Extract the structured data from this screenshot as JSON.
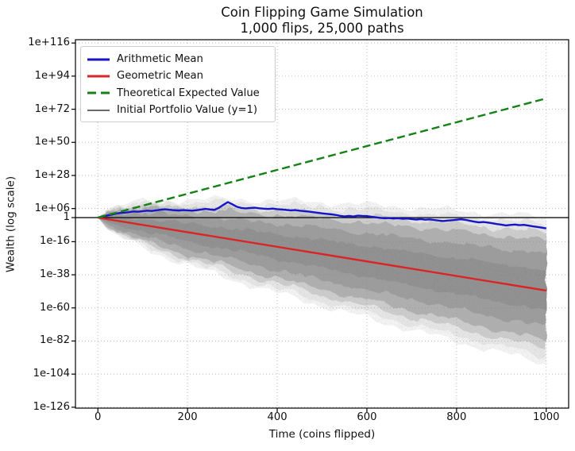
{
  "figure": {
    "title_line1": "Coin Flipping Game Simulation",
    "title_line2": "1,000 flips, 25,000 paths",
    "xlabel": "Time (coins flipped)",
    "ylabel": "Wealth (log scale)"
  },
  "legend": {
    "items": [
      {
        "label": "Arithmetic Mean",
        "color": "#1414c8",
        "sample_width": "3",
        "dash": "none"
      },
      {
        "label": "Geometric Mean",
        "color": "#d92525",
        "sample_width": "3",
        "dash": "none"
      },
      {
        "label": "Theoretical Expected Value",
        "color": "#148214",
        "sample_width": "3",
        "dash": "11 6"
      },
      {
        "label": "Initial Portfolio Value (y=1)",
        "color": "#111111",
        "sample_width": "1.3",
        "dash": "none"
      }
    ]
  },
  "chart_data": {
    "type": "line",
    "title": "Coin Flipping Game Simulation — 1,000 flips, 25,000 paths",
    "xlabel": "Time (coins flipped)",
    "ylabel": "Wealth (log scale)",
    "y_scale": "log10",
    "grid": true,
    "grid_color": "#bbbbbb",
    "xlim": [
      -50,
      1050
    ],
    "ylim_exp": [
      118.2,
      -126.6
    ],
    "x_ticks": [
      0,
      200,
      400,
      600,
      800,
      1000
    ],
    "y_ticks": [
      {
        "label": "1e+116",
        "exp": 116
      },
      {
        "label": "1e+94",
        "exp": 94
      },
      {
        "label": "1e+72",
        "exp": 72
      },
      {
        "label": "1e+50",
        "exp": 50
      },
      {
        "label": "1e+28",
        "exp": 28
      },
      {
        "label": "1e+06",
        "exp": 6
      },
      {
        "label": "1",
        "exp": 0
      },
      {
        "label": "1e-16",
        "exp": -16
      },
      {
        "label": "1e-38",
        "exp": -38
      },
      {
        "label": "1e-60",
        "exp": -60
      },
      {
        "label": "1e-82",
        "exp": -82
      },
      {
        "label": "1e-104",
        "exp": -104
      },
      {
        "label": "1e-126",
        "exp": -126
      }
    ],
    "series": [
      {
        "name": "Arithmetic Mean",
        "color": "#1414c8",
        "width": 2.4,
        "dash": "none",
        "x_start": 0,
        "x_step": 10,
        "y_exp": [
          0,
          0.7,
          1.3,
          1.9,
          2.6,
          3.1,
          3.3,
          3.6,
          4.1,
          3.9,
          4.3,
          4.6,
          4.4,
          4.8,
          5.2,
          5.5,
          5.2,
          4.9,
          4.7,
          5.0,
          4.8,
          4.6,
          4.9,
          5.3,
          5.8,
          5.4,
          5.1,
          6.5,
          8.5,
          10.3,
          8.8,
          7.2,
          6.4,
          6.1,
          6.4,
          6.6,
          6.2,
          5.9,
          5.7,
          6.0,
          5.6,
          5.4,
          5.1,
          4.8,
          5.0,
          4.6,
          4.3,
          4.0,
          3.6,
          3.2,
          2.8,
          2.5,
          2.2,
          1.8,
          1.2,
          0.8,
          1.1,
          0.7,
          1.3,
          1.1,
          1.0,
          0.6,
          0.2,
          -0.2,
          -0.5,
          -0.3,
          -0.7,
          -0.4,
          -0.8,
          -0.6,
          -1.0,
          -1.3,
          -1.0,
          -1.4,
          -1.2,
          -1.6,
          -2.0,
          -2.3,
          -2.0,
          -1.7,
          -1.4,
          -1.1,
          -1.5,
          -2.1,
          -2.7,
          -3.2,
          -2.9,
          -3.3,
          -3.8,
          -4.3,
          -4.7,
          -5.2,
          -4.9,
          -4.6,
          -5.0,
          -4.8,
          -5.3,
          -5.8,
          -6.2,
          -6.7,
          -7.2
        ]
      },
      {
        "name": "Geometric Mean",
        "color": "#d92525",
        "width": 2.4,
        "dash": "none",
        "x": [
          0,
          1000
        ],
        "y_exp": [
          0,
          -48.5
        ]
      },
      {
        "name": "Theoretical Expected Value",
        "color": "#148214",
        "width": 2.4,
        "dash": "10 5",
        "x": [
          0,
          1000
        ],
        "y_exp": [
          0,
          79.2
        ]
      },
      {
        "name": "Initial Portfolio Value (y=1)",
        "color": "#111111",
        "width": 1.4,
        "dash": "none",
        "x": [
          -50,
          1050
        ],
        "y_exp": [
          0,
          0
        ]
      }
    ],
    "paths_fan": {
      "description": "cloud of 25,000 simulated wealth paths over 1,000 flips (gray fan)",
      "n_paths": 25000,
      "n_flips": 1000,
      "median_exp_slope_per_flip": -0.0485,
      "sigma_exp_per_sqrt_flip": 0.3495,
      "bands_sigma": [
        1.2,
        2.2,
        3.0,
        3.5,
        4.0
      ],
      "band_opacities": [
        0.55,
        0.5,
        0.42,
        0.28,
        0.13
      ],
      "color": "#808080",
      "end_exp_range_dense": [
        -73,
        -24
      ],
      "end_exp_range_faint": [
        -92,
        -4
      ]
    }
  }
}
